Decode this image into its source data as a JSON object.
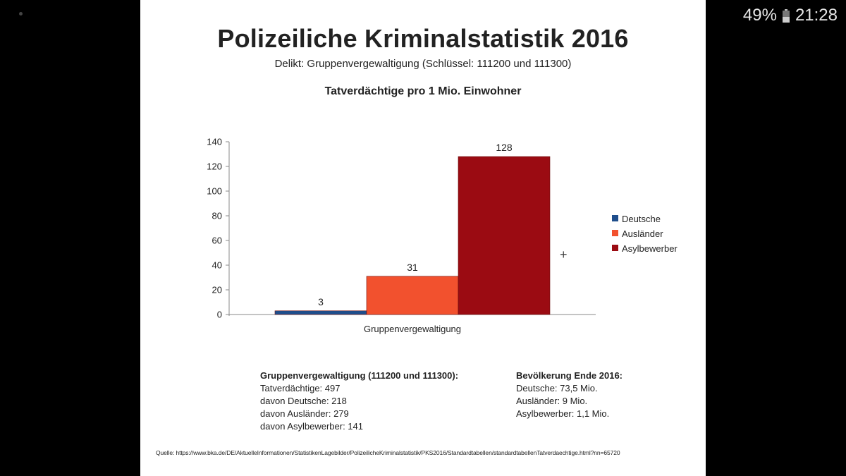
{
  "status": {
    "battery": "49%",
    "time": "21:28"
  },
  "slide": {
    "title": "Polizeiliche Kriminalstatistik 2016",
    "subtitle": "Delikt: Gruppenvergewaltigung (Schlüssel: 111200 und 111300)",
    "chart_title": "Tatverdächtige pro 1 Mio. Einwohner",
    "left_info": {
      "heading": "Gruppenvergewaltigung (111200 und 111300):",
      "lines": [
        "Tatverdächtige: 497",
        "davon Deutsche: 218",
        "davon Ausländer: 279",
        "davon Asylbewerber: 141"
      ]
    },
    "right_info": {
      "heading": "Bevölkerung Ende 2016:",
      "lines": [
        "Deutsche: 73,5 Mio.",
        "Ausländer: 9 Mio.",
        "Asylbewerber: 1,1 Mio."
      ]
    },
    "source": "Quelle: https://www.bka.de/DE/AktuelleInformationen/StatistikenLagebilder/PolizeilicheKriminalstatistik/PKS2016/Standardtabellen/standardtabellenTatverdaechtige.html?nn=65720",
    "crosshair": "+"
  },
  "chart_data": {
    "type": "bar",
    "title": "Tatverdächtige pro 1 Mio. Einwohner",
    "categories": [
      "Gruppenvergewaltigung"
    ],
    "series": [
      {
        "name": "Deutsche",
        "values": [
          3
        ],
        "color": "#1f4e8c"
      },
      {
        "name": "Ausländer",
        "values": [
          31
        ],
        "color": "#f2512e"
      },
      {
        "name": "Asylbewerber",
        "values": [
          128
        ],
        "color": "#9b0b12"
      }
    ],
    "xlabel": "",
    "ylabel": "",
    "ylim": [
      0,
      140
    ],
    "yticks": [
      0,
      20,
      40,
      60,
      80,
      100,
      120,
      140
    ],
    "legend": "right"
  }
}
